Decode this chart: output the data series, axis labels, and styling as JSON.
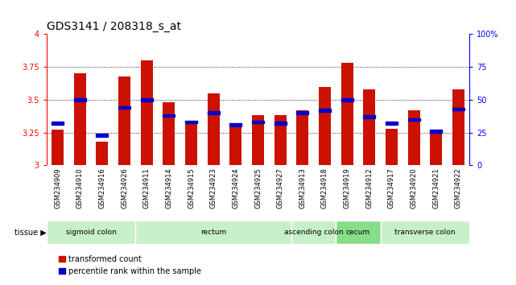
{
  "title": "GDS3141 / 208318_s_at",
  "samples": [
    "GSM234909",
    "GSM234910",
    "GSM234916",
    "GSM234926",
    "GSM234911",
    "GSM234914",
    "GSM234915",
    "GSM234923",
    "GSM234924",
    "GSM234925",
    "GSM234927",
    "GSM234913",
    "GSM234918",
    "GSM234919",
    "GSM234912",
    "GSM234917",
    "GSM234920",
    "GSM234921",
    "GSM234922"
  ],
  "bar_values": [
    3.27,
    3.7,
    3.18,
    3.68,
    3.8,
    3.48,
    3.33,
    3.55,
    3.3,
    3.38,
    3.38,
    3.42,
    3.6,
    3.78,
    3.58,
    3.28,
    3.42,
    3.26,
    3.58
  ],
  "percentile_values": [
    3.32,
    3.5,
    3.23,
    3.44,
    3.5,
    3.38,
    3.33,
    3.4,
    3.31,
    3.33,
    3.32,
    3.4,
    3.42,
    3.5,
    3.37,
    3.32,
    3.35,
    3.26,
    3.43
  ],
  "bar_color": "#cc1100",
  "dot_color": "#0000cc",
  "ylim_left": [
    3.0,
    4.0
  ],
  "ylim_right": [
    0,
    100
  ],
  "yticks_left": [
    3.0,
    3.25,
    3.5,
    3.75,
    4.0
  ],
  "yticks_right": [
    0,
    25,
    50,
    75,
    100
  ],
  "ytick_labels_left": [
    "3",
    "3.25",
    "3.5",
    "3.75",
    "4"
  ],
  "ytick_labels_right": [
    "0",
    "25",
    "50",
    "75",
    "100%"
  ],
  "gridlines": [
    3.25,
    3.5,
    3.75
  ],
  "tissue_groups": [
    {
      "label": "sigmoid colon",
      "start": 0,
      "end": 3,
      "color": "#c8f0c8"
    },
    {
      "label": "rectum",
      "start": 4,
      "end": 10,
      "color": "#c8f0c8"
    },
    {
      "label": "ascending colon",
      "start": 11,
      "end": 12,
      "color": "#c8f0c8"
    },
    {
      "label": "cecum",
      "start": 13,
      "end": 14,
      "color": "#88dd88"
    },
    {
      "label": "transverse colon",
      "start": 15,
      "end": 18,
      "color": "#c8f0c8"
    }
  ],
  "tissue_label": "tissue ▶",
  "legend_items": [
    {
      "label": "transformed count",
      "color": "#cc1100"
    },
    {
      "label": "percentile rank within the sample",
      "color": "#0000cc"
    }
  ],
  "bar_width": 0.55,
  "background_color": "#ffffff",
  "title_fontsize": 10,
  "tick_fontsize": 7,
  "sample_fontsize": 6
}
